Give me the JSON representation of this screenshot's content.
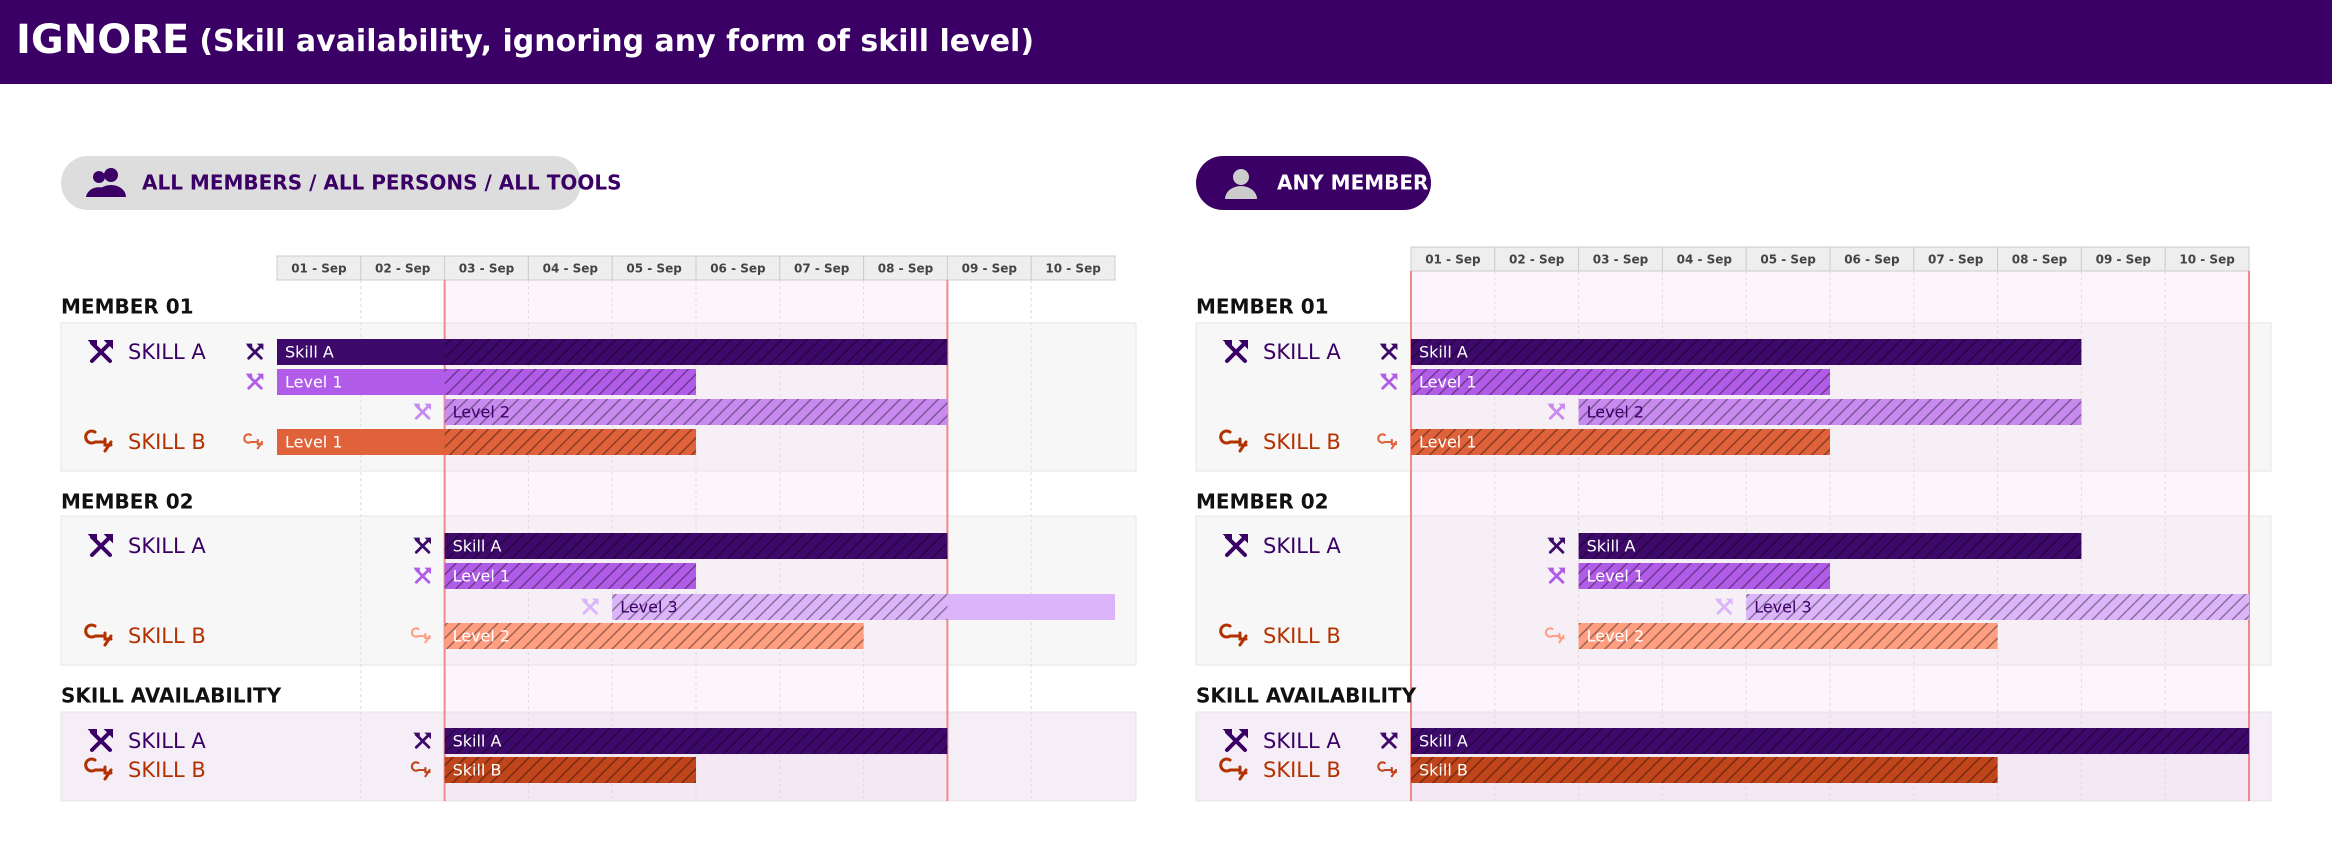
{
  "header": {
    "title": "IGNORE",
    "subtitle": "(Skill availability, ignoring any form of skill level)"
  },
  "panels": [
    {
      "label": "ALL MEMBERS / ALL PERSONS / ALL TOOLS",
      "dates": [
        "01 - Sep",
        "02 - Sep",
        "03 - Sep",
        "04 - Sep",
        "05 - Sep",
        "06 - Sep",
        "07 - Sep",
        "08 - Sep",
        "09 - Sep",
        "10 - Sep"
      ],
      "groups": [
        {
          "title": "MEMBER 01",
          "rows": [
            {
              "skill": "SKILL A",
              "bar": "Skill A"
            },
            {
              "bar": "Level 1"
            },
            {
              "bar": "Level 2"
            },
            {
              "skill": "SKILL B",
              "bar": "Level 1"
            }
          ]
        },
        {
          "title": "MEMBER 02",
          "rows": [
            {
              "skill": "SKILL A",
              "bar": "Skill A"
            },
            {
              "bar": "Level 1"
            },
            {
              "bar": "Level 3"
            },
            {
              "skill": "SKILL B",
              "bar": "Level 2"
            }
          ]
        },
        {
          "title": "SKILL AVAILABILITY",
          "rows": [
            {
              "skill": "SKILL A",
              "bar": "Skill A"
            },
            {
              "skill": "SKILL B",
              "bar": "Skill B"
            }
          ]
        }
      ]
    },
    {
      "label": "ANY MEMBER",
      "dates": [
        "01 - Sep",
        "02 - Sep",
        "03 - Sep",
        "04 - Sep",
        "05 - Sep",
        "06 - Sep",
        "07 - Sep",
        "08 - Sep",
        "09 - Sep",
        "10 - Sep"
      ],
      "groups": [
        {
          "title": "MEMBER 01",
          "rows": [
            {
              "skill": "SKILL A",
              "bar": "Skill A"
            },
            {
              "bar": "Level 1"
            },
            {
              "bar": "Level 2"
            },
            {
              "skill": "SKILL B",
              "bar": "Level 1"
            }
          ]
        },
        {
          "title": "MEMBER 02",
          "rows": [
            {
              "skill": "SKILL A",
              "bar": "Skill A"
            },
            {
              "bar": "Level 1"
            },
            {
              "bar": "Level 3"
            },
            {
              "skill": "SKILL B",
              "bar": "Level 2"
            }
          ]
        },
        {
          "title": "SKILL AVAILABILITY",
          "rows": [
            {
              "skill": "SKILL A",
              "bar": "Skill A"
            },
            {
              "skill": "SKILL B",
              "bar": "Skill B"
            }
          ]
        }
      ]
    }
  ]
}
